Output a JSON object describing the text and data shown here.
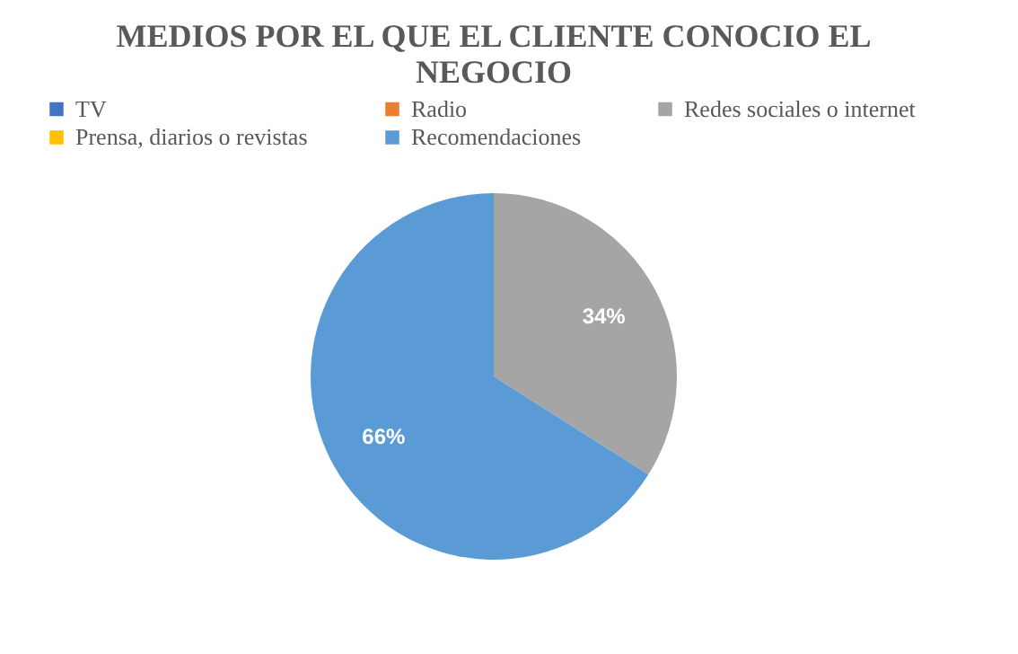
{
  "chart_data": {
    "type": "pie",
    "title": "MEDIOS POR EL QUE EL CLIENTE CONOCIO EL NEGOCIO",
    "categories": [
      "TV",
      "Radio",
      "Redes sociales o internet",
      "Prensa, diarios o revistas",
      "Recomendaciones"
    ],
    "values": [
      0,
      0,
      34,
      0,
      66
    ],
    "colors": [
      "#4472c4",
      "#ed7d31",
      "#a5a5a5",
      "#ffc000",
      "#5b9bd5"
    ],
    "value_labels": [
      null,
      null,
      "34%",
      null,
      "66%"
    ],
    "legend": "top"
  }
}
